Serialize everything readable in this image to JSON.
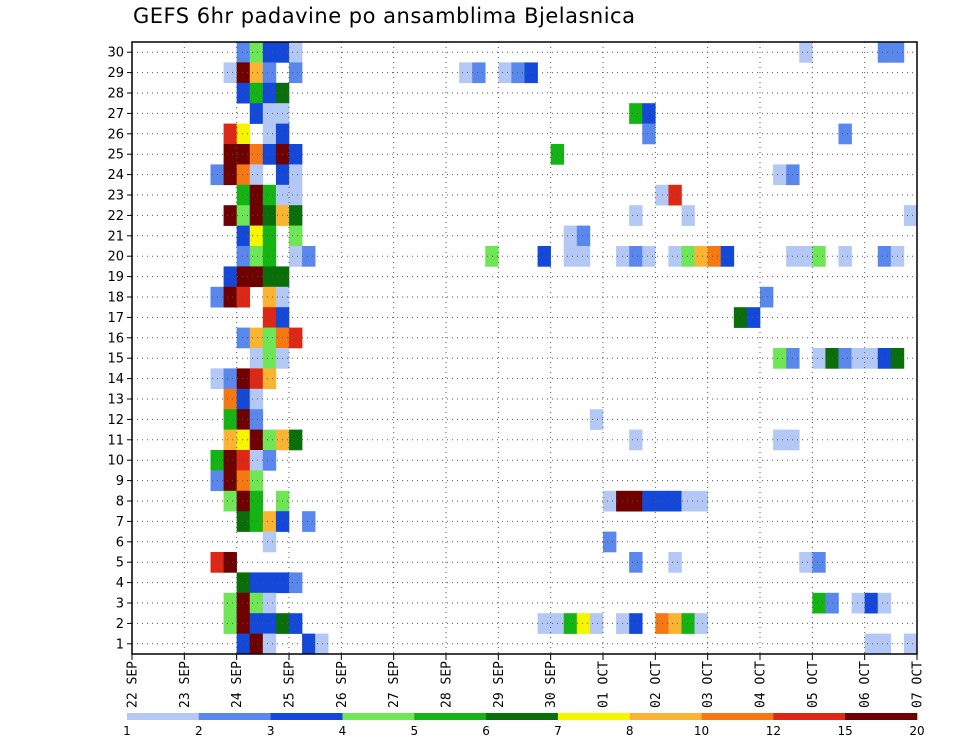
{
  "chart_data": {
    "type": "heatmap",
    "title": "GEFS 6hr padavine po ansamblima Bjelasnica",
    "xlabel": "",
    "ylabel": "",
    "ylim": [
      0,
      30
    ],
    "x_tick_labels": [
      "22 SEP",
      "23 SEP",
      "24 SEP",
      "25 SEP",
      "26 SEP",
      "27 SEP",
      "28 SEP",
      "29 SEP",
      "30 SEP",
      "01 OCT",
      "02 OCT",
      "03 OCT",
      "04 OCT",
      "05 OCT",
      "06 OCT",
      "07 OCT"
    ],
    "y_tick_labels": [
      "1",
      "2",
      "3",
      "4",
      "5",
      "6",
      "7",
      "8",
      "9",
      "10",
      "11",
      "12",
      "13",
      "14",
      "15",
      "16",
      "17",
      "18",
      "19",
      "20",
      "21",
      "22",
      "23",
      "24",
      "25",
      "26",
      "27",
      "28",
      "29",
      "30"
    ],
    "grid": true,
    "x_steps_per_day": 4,
    "colorbar": {
      "labels": [
        "1",
        "2",
        "3",
        "4",
        "5",
        "6",
        "7",
        "8",
        "10",
        "12",
        "15",
        "20"
      ],
      "colors": [
        "#b4c8f5",
        "#5a87ec",
        "#1448d8",
        "#6ee656",
        "#14b414",
        "#0a6e0a",
        "#f5f500",
        "#fab432",
        "#f57814",
        "#dc2814",
        "#6e0000"
      ]
    },
    "cells": [
      {
        "m": 30,
        "c": [
          [
            8,
            1
          ],
          [
            9,
            3
          ],
          [
            10,
            2
          ],
          [
            11,
            2
          ],
          [
            12,
            0
          ],
          [
            51,
            0
          ],
          [
            57,
            1
          ],
          [
            58,
            1
          ]
        ]
      },
      {
        "m": 29,
        "c": [
          [
            7,
            0
          ],
          [
            8,
            10
          ],
          [
            9,
            7
          ],
          [
            10,
            1
          ],
          [
            12,
            1
          ],
          [
            25,
            0
          ],
          [
            26,
            1
          ],
          [
            28,
            0
          ],
          [
            29,
            1
          ],
          [
            30,
            2
          ]
        ]
      },
      {
        "m": 28,
        "c": [
          [
            8,
            2
          ],
          [
            9,
            4
          ],
          [
            10,
            2
          ],
          [
            11,
            5
          ]
        ]
      },
      {
        "m": 27,
        "c": [
          [
            9,
            2
          ],
          [
            10,
            0
          ],
          [
            11,
            0
          ],
          [
            38,
            4
          ],
          [
            39,
            2
          ]
        ]
      },
      {
        "m": 26,
        "c": [
          [
            7,
            9
          ],
          [
            8,
            6
          ],
          [
            10,
            0
          ],
          [
            11,
            2
          ],
          [
            39,
            1
          ],
          [
            54,
            1
          ]
        ]
      },
      {
        "m": 25,
        "c": [
          [
            7,
            10
          ],
          [
            8,
            10
          ],
          [
            9,
            8
          ],
          [
            10,
            2
          ],
          [
            11,
            10
          ],
          [
            12,
            2
          ],
          [
            32,
            4
          ]
        ]
      },
      {
        "m": 24,
        "c": [
          [
            6,
            1
          ],
          [
            7,
            10
          ],
          [
            8,
            8
          ],
          [
            9,
            0
          ],
          [
            11,
            2
          ],
          [
            12,
            0
          ],
          [
            49,
            0
          ],
          [
            50,
            1
          ]
        ]
      },
      {
        "m": 23,
        "c": [
          [
            8,
            4
          ],
          [
            9,
            10
          ],
          [
            10,
            4
          ],
          [
            11,
            0
          ],
          [
            12,
            0
          ],
          [
            40,
            0
          ],
          [
            41,
            9
          ]
        ]
      },
      {
        "m": 22,
        "c": [
          [
            7,
            10
          ],
          [
            8,
            3
          ],
          [
            9,
            10
          ],
          [
            10,
            5
          ],
          [
            11,
            7
          ],
          [
            12,
            5
          ],
          [
            38,
            0
          ],
          [
            42,
            0
          ],
          [
            59,
            0
          ]
        ]
      },
      {
        "m": 21,
        "c": [
          [
            8,
            2
          ],
          [
            9,
            6
          ],
          [
            10,
            4
          ],
          [
            12,
            3
          ],
          [
            33,
            0
          ],
          [
            34,
            1
          ]
        ]
      },
      {
        "m": 20,
        "c": [
          [
            8,
            1
          ],
          [
            9,
            3
          ],
          [
            10,
            4
          ],
          [
            12,
            0
          ],
          [
            13,
            1
          ],
          [
            27,
            3
          ],
          [
            31,
            2
          ],
          [
            33,
            0
          ],
          [
            34,
            0
          ],
          [
            37,
            0
          ],
          [
            38,
            1
          ],
          [
            39,
            0
          ],
          [
            41,
            0
          ],
          [
            42,
            3
          ],
          [
            43,
            7
          ],
          [
            44,
            8
          ],
          [
            45,
            2
          ],
          [
            50,
            0
          ],
          [
            51,
            0
          ],
          [
            52,
            3
          ],
          [
            54,
            0
          ],
          [
            57,
            1
          ],
          [
            58,
            0
          ]
        ]
      },
      {
        "m": 19,
        "c": [
          [
            7,
            2
          ],
          [
            8,
            10
          ],
          [
            9,
            10
          ],
          [
            10,
            5
          ],
          [
            11,
            5
          ]
        ]
      },
      {
        "m": 18,
        "c": [
          [
            6,
            1
          ],
          [
            7,
            10
          ],
          [
            8,
            9
          ],
          [
            10,
            7
          ],
          [
            11,
            0
          ],
          [
            48,
            1
          ]
        ]
      },
      {
        "m": 17,
        "c": [
          [
            10,
            9
          ],
          [
            11,
            2
          ],
          [
            46,
            5
          ],
          [
            47,
            2
          ]
        ]
      },
      {
        "m": 16,
        "c": [
          [
            8,
            1
          ],
          [
            9,
            7
          ],
          [
            10,
            3
          ],
          [
            11,
            8
          ],
          [
            12,
            9
          ]
        ]
      },
      {
        "m": 15,
        "c": [
          [
            9,
            0
          ],
          [
            10,
            3
          ],
          [
            11,
            0
          ],
          [
            49,
            3
          ],
          [
            50,
            1
          ],
          [
            52,
            0
          ],
          [
            53,
            5
          ],
          [
            54,
            1
          ],
          [
            55,
            0
          ],
          [
            56,
            0
          ],
          [
            57,
            2
          ],
          [
            58,
            5
          ]
        ]
      },
      {
        "m": 14,
        "c": [
          [
            6,
            0
          ],
          [
            7,
            1
          ],
          [
            8,
            10
          ],
          [
            9,
            9
          ],
          [
            10,
            7
          ]
        ]
      },
      {
        "m": 13,
        "c": [
          [
            7,
            8
          ],
          [
            8,
            2
          ],
          [
            9,
            0
          ]
        ]
      },
      {
        "m": 12,
        "c": [
          [
            7,
            4
          ],
          [
            8,
            10
          ],
          [
            9,
            1
          ],
          [
            35,
            0
          ]
        ]
      },
      {
        "m": 11,
        "c": [
          [
            7,
            7
          ],
          [
            8,
            6
          ],
          [
            9,
            10
          ],
          [
            10,
            3
          ],
          [
            11,
            7
          ],
          [
            12,
            5
          ],
          [
            38,
            0
          ],
          [
            49,
            0
          ],
          [
            50,
            0
          ]
        ]
      },
      {
        "m": 10,
        "c": [
          [
            6,
            4
          ],
          [
            7,
            10
          ],
          [
            8,
            9
          ],
          [
            9,
            0
          ],
          [
            10,
            1
          ]
        ]
      },
      {
        "m": 9,
        "c": [
          [
            6,
            1
          ],
          [
            7,
            10
          ],
          [
            8,
            8
          ],
          [
            9,
            3
          ]
        ]
      },
      {
        "m": 8,
        "c": [
          [
            7,
            3
          ],
          [
            8,
            10
          ],
          [
            9,
            4
          ],
          [
            11,
            3
          ],
          [
            36,
            0
          ],
          [
            37,
            10
          ],
          [
            38,
            10
          ],
          [
            39,
            2
          ],
          [
            40,
            2
          ],
          [
            41,
            2
          ],
          [
            42,
            0
          ],
          [
            43,
            0
          ]
        ]
      },
      {
        "m": 7,
        "c": [
          [
            8,
            5
          ],
          [
            9,
            4
          ],
          [
            10,
            7
          ],
          [
            11,
            2
          ],
          [
            13,
            1
          ]
        ]
      },
      {
        "m": 6,
        "c": [
          [
            10,
            0
          ],
          [
            36,
            1
          ]
        ]
      },
      {
        "m": 5,
        "c": [
          [
            6,
            9
          ],
          [
            7,
            10
          ],
          [
            38,
            1
          ],
          [
            41,
            0
          ],
          [
            51,
            0
          ],
          [
            52,
            1
          ]
        ]
      },
      {
        "m": 4,
        "c": [
          [
            8,
            5
          ],
          [
            9,
            2
          ],
          [
            10,
            2
          ],
          [
            11,
            2
          ],
          [
            12,
            1
          ]
        ]
      },
      {
        "m": 3,
        "c": [
          [
            7,
            3
          ],
          [
            8,
            10
          ],
          [
            9,
            3
          ],
          [
            10,
            0
          ],
          [
            52,
            4
          ],
          [
            53,
            1
          ],
          [
            55,
            0
          ],
          [
            56,
            2
          ],
          [
            57,
            0
          ]
        ]
      },
      {
        "m": 2,
        "c": [
          [
            7,
            3
          ],
          [
            8,
            10
          ],
          [
            9,
            2
          ],
          [
            10,
            2
          ],
          [
            11,
            5
          ],
          [
            12,
            2
          ],
          [
            31,
            0
          ],
          [
            32,
            0
          ],
          [
            33,
            4
          ],
          [
            34,
            6
          ],
          [
            35,
            0
          ],
          [
            37,
            0
          ],
          [
            38,
            2
          ],
          [
            40,
            8
          ],
          [
            41,
            7
          ],
          [
            42,
            4
          ],
          [
            43,
            0
          ]
        ]
      },
      {
        "m": 1,
        "c": [
          [
            8,
            2
          ],
          [
            9,
            10
          ],
          [
            10,
            0
          ],
          [
            13,
            2
          ],
          [
            14,
            0
          ],
          [
            56,
            0
          ],
          [
            57,
            0
          ],
          [
            59,
            0
          ]
        ]
      }
    ]
  }
}
